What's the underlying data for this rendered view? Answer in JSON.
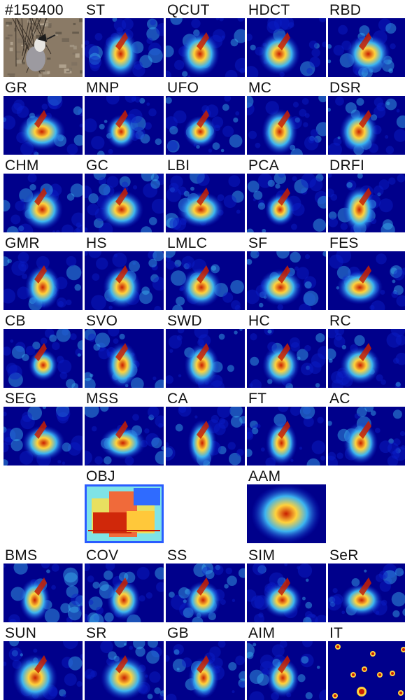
{
  "image_id_label": "#159400",
  "palette": {
    "background": "#00008b",
    "low": "#0a1ec8",
    "mid": "#3cb4f0",
    "high": "#ffd23c",
    "peak": "#c81e00"
  },
  "rows": [
    [
      {
        "label": "#159400",
        "kind": "photo"
      },
      {
        "label": "ST",
        "kind": "saliency"
      },
      {
        "label": "QCUT",
        "kind": "saliency"
      },
      {
        "label": "HDCT",
        "kind": "saliency"
      },
      {
        "label": "RBD",
        "kind": "saliency"
      }
    ],
    [
      {
        "label": "GR",
        "kind": "saliency"
      },
      {
        "label": "MNP",
        "kind": "saliency"
      },
      {
        "label": "UFO",
        "kind": "saliency"
      },
      {
        "label": "MC",
        "kind": "saliency"
      },
      {
        "label": "DSR",
        "kind": "saliency"
      }
    ],
    [
      {
        "label": "CHM",
        "kind": "saliency"
      },
      {
        "label": "GC",
        "kind": "saliency"
      },
      {
        "label": "LBI",
        "kind": "saliency"
      },
      {
        "label": "PCA",
        "kind": "saliency"
      },
      {
        "label": "DRFI",
        "kind": "saliency"
      }
    ],
    [
      {
        "label": "GMR",
        "kind": "saliency"
      },
      {
        "label": "HS",
        "kind": "saliency"
      },
      {
        "label": "LMLC",
        "kind": "saliency"
      },
      {
        "label": "SF",
        "kind": "saliency"
      },
      {
        "label": "FES",
        "kind": "saliency"
      }
    ],
    [
      {
        "label": "CB",
        "kind": "saliency"
      },
      {
        "label": "SVO",
        "kind": "saliency"
      },
      {
        "label": "SWD",
        "kind": "saliency"
      },
      {
        "label": "HC",
        "kind": "saliency"
      },
      {
        "label": "RC",
        "kind": "saliency"
      }
    ],
    [
      {
        "label": "SEG",
        "kind": "saliency"
      },
      {
        "label": "MSS",
        "kind": "saliency"
      },
      {
        "label": "CA",
        "kind": "saliency"
      },
      {
        "label": "FT",
        "kind": "saliency"
      },
      {
        "label": "AC",
        "kind": "saliency"
      }
    ],
    [
      {
        "label": "",
        "kind": "empty"
      },
      {
        "label": "OBJ",
        "kind": "boxes"
      },
      {
        "label": "",
        "kind": "empty"
      },
      {
        "label": "AAM",
        "kind": "centerblob"
      },
      {
        "label": "",
        "kind": "empty"
      }
    ],
    [
      {
        "label": "BMS",
        "kind": "saliency"
      },
      {
        "label": "COV",
        "kind": "saliency"
      },
      {
        "label": "SS",
        "kind": "saliency"
      },
      {
        "label": "SIM",
        "kind": "saliency"
      },
      {
        "label": "SeR",
        "kind": "saliency"
      }
    ],
    [
      {
        "label": "SUN",
        "kind": "saliency"
      },
      {
        "label": "SR",
        "kind": "saliency"
      },
      {
        "label": "GB",
        "kind": "saliency"
      },
      {
        "label": "AIM",
        "kind": "saliency"
      },
      {
        "label": "IT",
        "kind": "dots"
      }
    ]
  ]
}
